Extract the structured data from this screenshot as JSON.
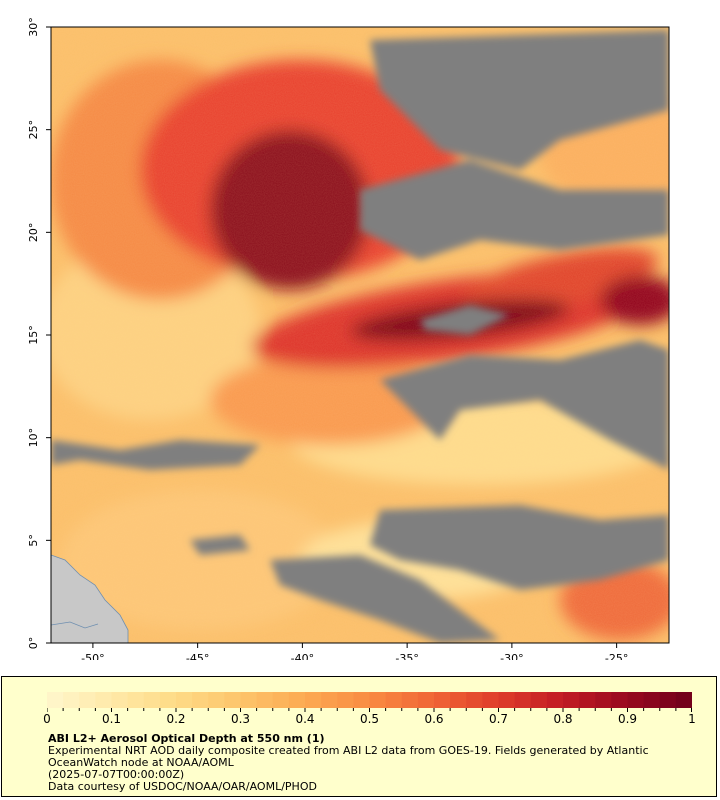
{
  "map": {
    "x_ticks": [
      "-50°",
      "-45°",
      "-40°",
      "-35°",
      "-30°",
      "-25°"
    ],
    "y_ticks": [
      "0°",
      "5°",
      "10°",
      "15°",
      "20°",
      "25°",
      "30°"
    ],
    "lon_range": [
      -52,
      -22.5
    ],
    "lat_range": [
      0,
      30
    ],
    "no_data_color": "#7f7f7f",
    "land_color": "#c8c8c8",
    "features": [
      {
        "name": "dust-plume-core",
        "aod_level": "0.9-1.0",
        "color": "#7a0018"
      },
      {
        "name": "dust-plume-band",
        "aod_level": "0.6-0.8",
        "color": "#d4202c"
      },
      {
        "name": "moderate-aod",
        "aod_level": "0.4-0.5",
        "color": "#f47a3a"
      },
      {
        "name": "low-aod",
        "aod_level": "0.1-0.3",
        "color": "#fdd685"
      }
    ]
  },
  "legend": {
    "colorbar_labels": [
      "0",
      "0.1",
      "0.2",
      "0.3",
      "0.4",
      "0.5",
      "0.6",
      "0.7",
      "0.8",
      "0.9",
      "1"
    ],
    "colorbar_colors": [
      "#fff7cc",
      "#ffe9a8",
      "#fedb86",
      "#fdc46a",
      "#fcaa52",
      "#f98b42",
      "#f06535",
      "#df3d2a",
      "#c11b24",
      "#98091f",
      "#6f001a"
    ],
    "title": "ABI L2+ Aerosol Optical Depth at 550 nm (1)",
    "description": "Experimental NRT AOD daily composite created from ABI L2 data from GOES-19. Fields generated by Atlantic OceanWatch node at NOAA/AOML",
    "timestamp": "(2025-07-07T00:00:00Z)",
    "credit": "Data courtesy of USDOC/NOAA/OAR/AOML/PHOD"
  }
}
